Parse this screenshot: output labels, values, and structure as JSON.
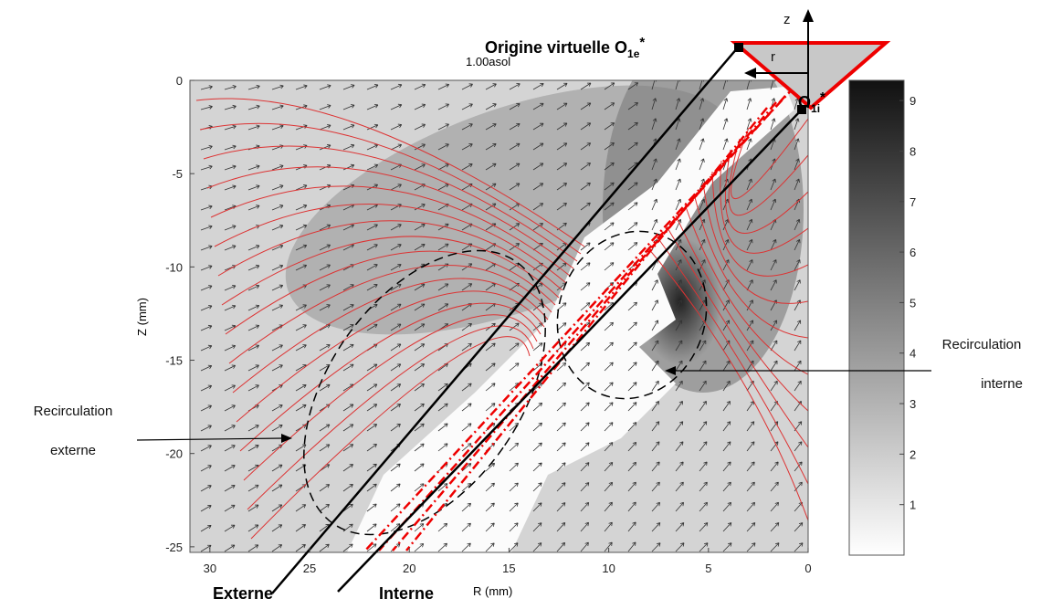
{
  "figure": {
    "plot_label": "1.00asol",
    "x_axis": {
      "label": "R (mm)",
      "lim": [
        31,
        0
      ],
      "ticks": [
        30,
        25,
        20,
        15,
        10,
        5,
        0
      ]
    },
    "y_axis": {
      "label": "Z (mm)",
      "lim": [
        0,
        -25.3
      ],
      "ticks": [
        0,
        -5,
        -10,
        -15,
        -20,
        -25
      ]
    },
    "colorbar": {
      "lim": [
        0,
        9.4
      ],
      "ticks": [
        1,
        2,
        3,
        4,
        5,
        6,
        7,
        8,
        9
      ]
    },
    "annotations": {
      "origin_external": {
        "main": "Origine virtuelle O",
        "sub": "1e",
        "sup": "*"
      },
      "origin_internal": {
        "main": "O",
        "sub": "1i",
        "sup": "*"
      },
      "axis_z": "z",
      "axis_r": "r",
      "recirc_internal": [
        "Recirculation",
        "interne"
      ],
      "recirc_external": [
        "Recirculation",
        "externe"
      ],
      "line_external": "Externe",
      "line_internal": "Interne"
    }
  }
}
